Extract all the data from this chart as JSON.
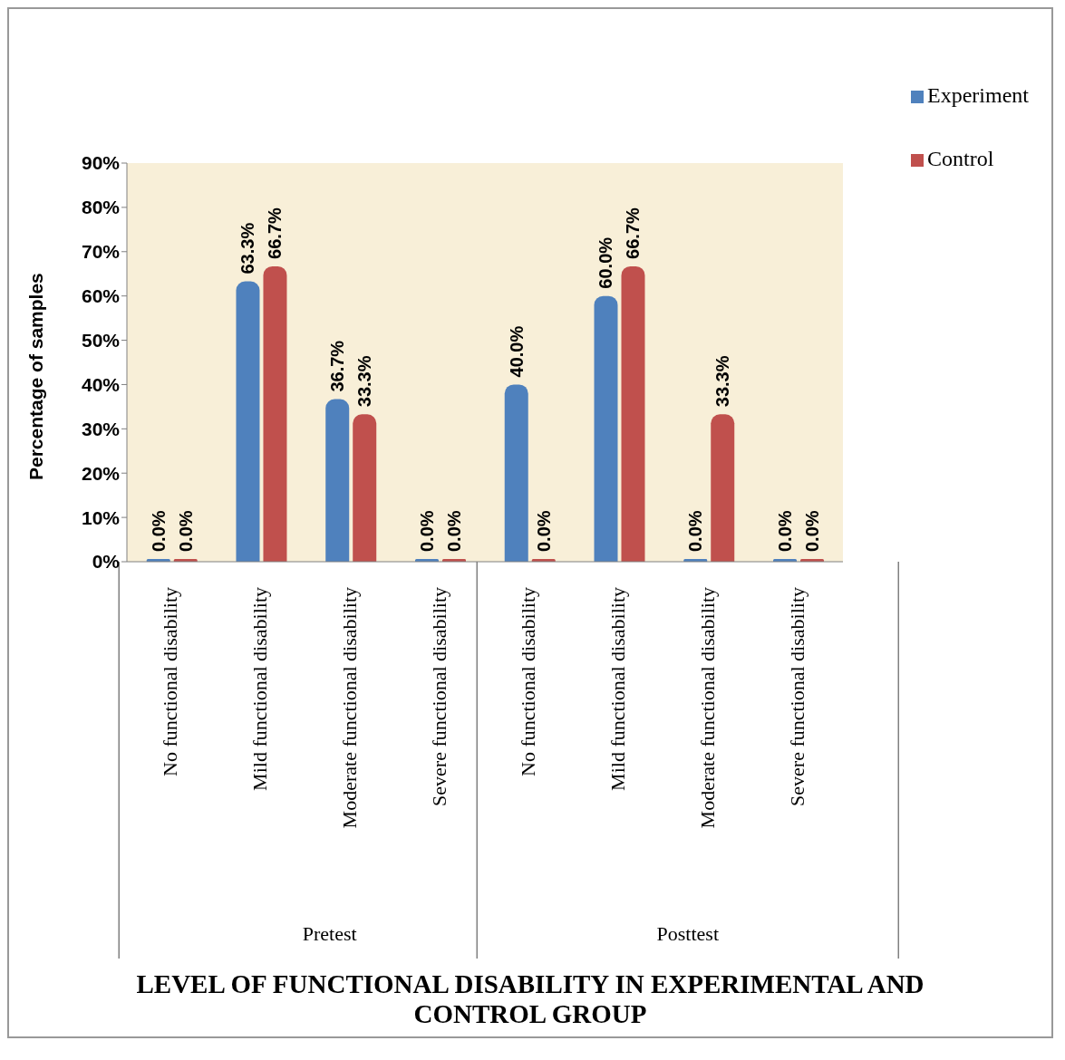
{
  "chart_data": {
    "type": "bar",
    "title": "LEVEL OF FUNCTIONAL DISABILITY IN EXPERIMENTAL AND CONTROL GROUP",
    "ylabel": "Percentage of samples",
    "categories": [
      "No functional disability",
      "Mild functional disability",
      "Moderate functional disability",
      "Severe functional disability",
      "No functional disability",
      "Mild functional disability",
      "Moderate functional disability",
      "Severe functional disability"
    ],
    "annotations": [
      "Pretest",
      "Posttest"
    ],
    "series": [
      {
        "name": "Experiment",
        "color": "#4f81bd",
        "values": [
          0,
          63.3,
          36.7,
          0,
          40,
          60,
          0,
          0
        ],
        "value_labels": [
          "0.0%",
          "63.3%",
          "36.7%",
          "0.0%",
          "40.0%",
          "60.0%",
          "0.0%",
          "0.0%"
        ]
      },
      {
        "name": "Control",
        "color": "#c0504d",
        "values": [
          0,
          66.7,
          33.3,
          0,
          0,
          66.7,
          33.3,
          0
        ],
        "value_labels": [
          "0.0%",
          "66.7%",
          "33.3%",
          "0.0%",
          "0.0%",
          "66.7%",
          "33.3%",
          "0.0%"
        ]
      }
    ],
    "ylim": [
      0,
      90
    ],
    "yticks": [
      {
        "value": 0,
        "label": "0%"
      },
      {
        "value": 10,
        "label": "10%"
      },
      {
        "value": 20,
        "label": "20%"
      },
      {
        "value": 30,
        "label": "30%"
      },
      {
        "value": 40,
        "label": "40%"
      },
      {
        "value": 50,
        "label": "50%"
      },
      {
        "value": 60,
        "label": "60%"
      },
      {
        "value": 70,
        "label": "70%"
      },
      {
        "value": 80,
        "label": "80%"
      },
      {
        "value": 90,
        "label": "90%"
      }
    ],
    "grid": false,
    "legend": "top right"
  }
}
